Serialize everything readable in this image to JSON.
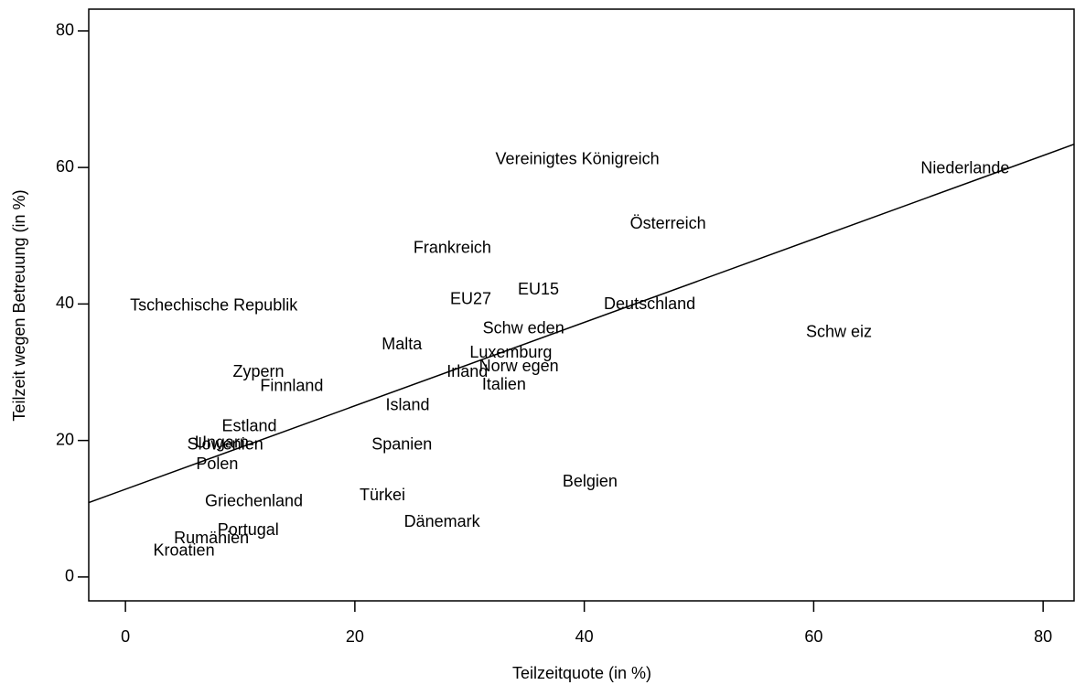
{
  "chart_data": {
    "type": "scatter",
    "xlabel": "Teilzeitquote (in %)",
    "ylabel": "Teilzeit wegen Betreuung (in %)",
    "categories": [
      "Vereinigtes Königreich",
      "Niederlande",
      "Österreich",
      "Frankreich",
      "EU15",
      "EU27",
      "Deutschland",
      "Tschechische Republik",
      "Schw eiz",
      "Schw eden",
      "Malta",
      "Luxemburg",
      "Norw egen",
      "Irland",
      "Zypern",
      "Finnland",
      "Italien",
      "Island",
      "Estland",
      "Ungarn",
      "Slowenien",
      "Spanien",
      "Polen",
      "Belgien",
      "Türkei",
      "Griechenland",
      "Dänemark",
      "Portugal",
      "Rumänien",
      "Kroatien"
    ],
    "x": [
      39.4,
      73.2,
      47.3,
      28.5,
      36.0,
      30.1,
      45.7,
      7.7,
      62.2,
      34.7,
      24.1,
      33.6,
      34.3,
      29.8,
      11.6,
      14.5,
      33.0,
      24.6,
      10.8,
      8.4,
      8.7,
      24.1,
      8.0,
      40.5,
      22.4,
      11.2,
      27.6,
      10.7,
      7.5,
      5.1
    ],
    "values": [
      61.1,
      59.8,
      51.7,
      48.1,
      42.0,
      40.6,
      39.9,
      39.7,
      35.8,
      36.3,
      34.0,
      32.8,
      30.8,
      30.0,
      30.0,
      27.9,
      28.1,
      25.1,
      22.0,
      19.6,
      19.3,
      19.3,
      16.4,
      13.9,
      11.9,
      11.0,
      8.0,
      6.8,
      5.6,
      3.8
    ],
    "trendline": {
      "x": [
        -3.2,
        82.7
      ],
      "values": [
        10.9,
        63.4
      ]
    },
    "xlim": [
      -3.2,
      82.7
    ],
    "ylim": [
      -3.5,
      83.2
    ],
    "xticks": [
      0,
      20,
      40,
      60,
      80
    ],
    "yticks": [
      0,
      20,
      40,
      60,
      80
    ]
  }
}
